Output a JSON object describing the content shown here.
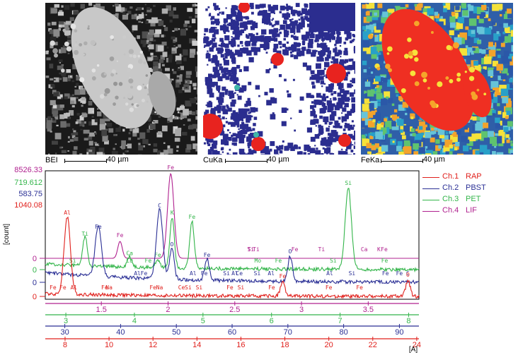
{
  "images": [
    {
      "label": "BEI",
      "scale_label": "40 µm",
      "colormap": "gray"
    },
    {
      "label": "CuKa",
      "scale_label": "40 µm",
      "colormap": "cu"
    },
    {
      "label": "FeKa",
      "scale_label": "40 µm",
      "colormap": "fe"
    }
  ],
  "legend": [
    {
      "name": "Ch.1",
      "crystal": "RAP",
      "color": "#e0201c"
    },
    {
      "name": "Ch.2",
      "crystal": "PBST",
      "color": "#2a2f95"
    },
    {
      "name": "Ch.3",
      "crystal": "PET",
      "color": "#33b54a"
    },
    {
      "name": "Ch.4",
      "crystal": "LIF",
      "color": "#b0218f"
    }
  ],
  "colors": {
    "ch1": "#e0201c",
    "ch2": "#2a2f95",
    "ch3": "#33b54a",
    "ch4": "#b0218f"
  },
  "chart_data": {
    "type": "line",
    "ylabel": "[count]",
    "y_max_labels": [
      {
        "value": "8526.33",
        "channel": "ch4"
      },
      {
        "value": "719.612",
        "channel": "ch3"
      },
      {
        "value": "583.75",
        "channel": "ch2"
      },
      {
        "value": "1040.08",
        "channel": "ch1"
      }
    ],
    "zero_labels": [
      "0",
      "0",
      "0",
      "0"
    ],
    "axes": [
      {
        "channel": "ch4",
        "ticks": [
          "1.5",
          "2",
          "2.5",
          "3",
          "3.5"
        ],
        "range": [
          1.08,
          3.88
        ]
      },
      {
        "channel": "ch3",
        "ticks": [
          "3",
          "4",
          "5",
          "6",
          "7",
          "8"
        ],
        "range": [
          2.7,
          8.15
        ]
      },
      {
        "channel": "ch2",
        "ticks": [
          "30",
          "40",
          "50",
          "60",
          "70",
          "80",
          "90"
        ],
        "range": [
          26.5,
          93.5
        ]
      },
      {
        "channel": "ch1",
        "ticks": [
          "8",
          "10",
          "12",
          "14",
          "16",
          "18",
          "20",
          "22",
          "24"
        ],
        "range": [
          7.1,
          24.1
        ]
      }
    ],
    "xunit": "[A]",
    "series": [
      {
        "name": "Ch.4 LIF",
        "peaks": [
          {
            "pos": 2.02,
            "label": "Fe",
            "h": 1.0
          },
          {
            "pos": 1.64,
            "label": "Fe",
            "h": 0.2
          }
        ],
        "labels": [
          {
            "pos": 2.62,
            "text": "Ti"
          },
          {
            "pos": 2.62,
            "text": "Si"
          },
          {
            "pos": 2.66,
            "text": "Ti"
          },
          {
            "pos": 2.95,
            "text": "Fe"
          },
          {
            "pos": 3.15,
            "text": "Ti"
          },
          {
            "pos": 3.47,
            "text": "Ca"
          },
          {
            "pos": 3.58,
            "text": "K"
          },
          {
            "pos": 3.62,
            "text": "Fe"
          }
        ]
      },
      {
        "name": "Ch.3 PET",
        "peaks": [
          {
            "pos": 3.28,
            "label": "Ti",
            "h": 0.35
          },
          {
            "pos": 3.93,
            "label": "Ca",
            "h": 0.12
          },
          {
            "pos": 4.34,
            "label": "Fe",
            "h": 0.1
          },
          {
            "pos": 4.55,
            "label": "K",
            "h": 0.6
          },
          {
            "pos": 4.84,
            "label": "Fe",
            "h": 0.55
          },
          {
            "pos": 7.12,
            "label": "Si",
            "h": 0.95
          }
        ],
        "labels": [
          {
            "pos": 3.1,
            "text": "Si"
          },
          {
            "pos": 3.93,
            "text": "Cu"
          },
          {
            "pos": 4.2,
            "text": "Fe"
          },
          {
            "pos": 5.8,
            "text": "Mo"
          },
          {
            "pos": 6.1,
            "text": "Fe"
          },
          {
            "pos": 6.9,
            "text": "Si"
          },
          {
            "pos": 7.65,
            "text": "Fe"
          }
        ]
      },
      {
        "name": "Ch.2 PBST",
        "peaks": [
          {
            "pos": 36.0,
            "label": "Fe",
            "h": 0.7
          },
          {
            "pos": 47.0,
            "label": "C",
            "h": 1.0
          },
          {
            "pos": 49.2,
            "label": "O",
            "h": 0.45
          },
          {
            "pos": 70.4,
            "label": "O",
            "h": 0.35
          },
          {
            "pos": 55.5,
            "label": "Fe",
            "h": 0.3
          }
        ],
        "labels": [
          {
            "pos": 43.0,
            "text": "Al"
          },
          {
            "pos": 44.2,
            "text": "Fe"
          },
          {
            "pos": 53.0,
            "text": "Al"
          },
          {
            "pos": 55.0,
            "text": "Fe"
          },
          {
            "pos": 59.0,
            "text": "Si"
          },
          {
            "pos": 60.5,
            "text": "Al"
          },
          {
            "pos": 61.3,
            "text": "Ce"
          },
          {
            "pos": 64.5,
            "text": "Si"
          },
          {
            "pos": 67.0,
            "text": "Al"
          },
          {
            "pos": 77.5,
            "text": "Al"
          },
          {
            "pos": 81.5,
            "text": "Si"
          },
          {
            "pos": 87.5,
            "text": "Fe"
          },
          {
            "pos": 90.0,
            "text": "Fe"
          },
          {
            "pos": 91.5,
            "text": "C"
          }
        ]
      },
      {
        "name": "Ch.1 RAP",
        "peaks": [
          {
            "pos": 8.1,
            "label": "Al",
            "h": 1.0
          },
          {
            "pos": 23.6,
            "label": "O",
            "h": 0.2
          },
          {
            "pos": 17.9,
            "label": "Fe",
            "h": 0.18
          }
        ],
        "labels": [
          {
            "pos": 7.45,
            "text": "Fe"
          },
          {
            "pos": 7.9,
            "text": "Fe"
          },
          {
            "pos": 8.4,
            "text": "Al"
          },
          {
            "pos": 9.8,
            "text": "Fe"
          },
          {
            "pos": 10.0,
            "text": "Na"
          },
          {
            "pos": 12.0,
            "text": "Fe"
          },
          {
            "pos": 12.3,
            "text": "Na"
          },
          {
            "pos": 13.3,
            "text": "Ce"
          },
          {
            "pos": 13.6,
            "text": "Si"
          },
          {
            "pos": 14.1,
            "text": "Si"
          },
          {
            "pos": 15.5,
            "text": "Fe"
          },
          {
            "pos": 16.0,
            "text": "Si"
          },
          {
            "pos": 17.4,
            "text": "Fe"
          },
          {
            "pos": 20.0,
            "text": "Fe"
          },
          {
            "pos": 21.4,
            "text": "Fe"
          }
        ]
      }
    ]
  }
}
